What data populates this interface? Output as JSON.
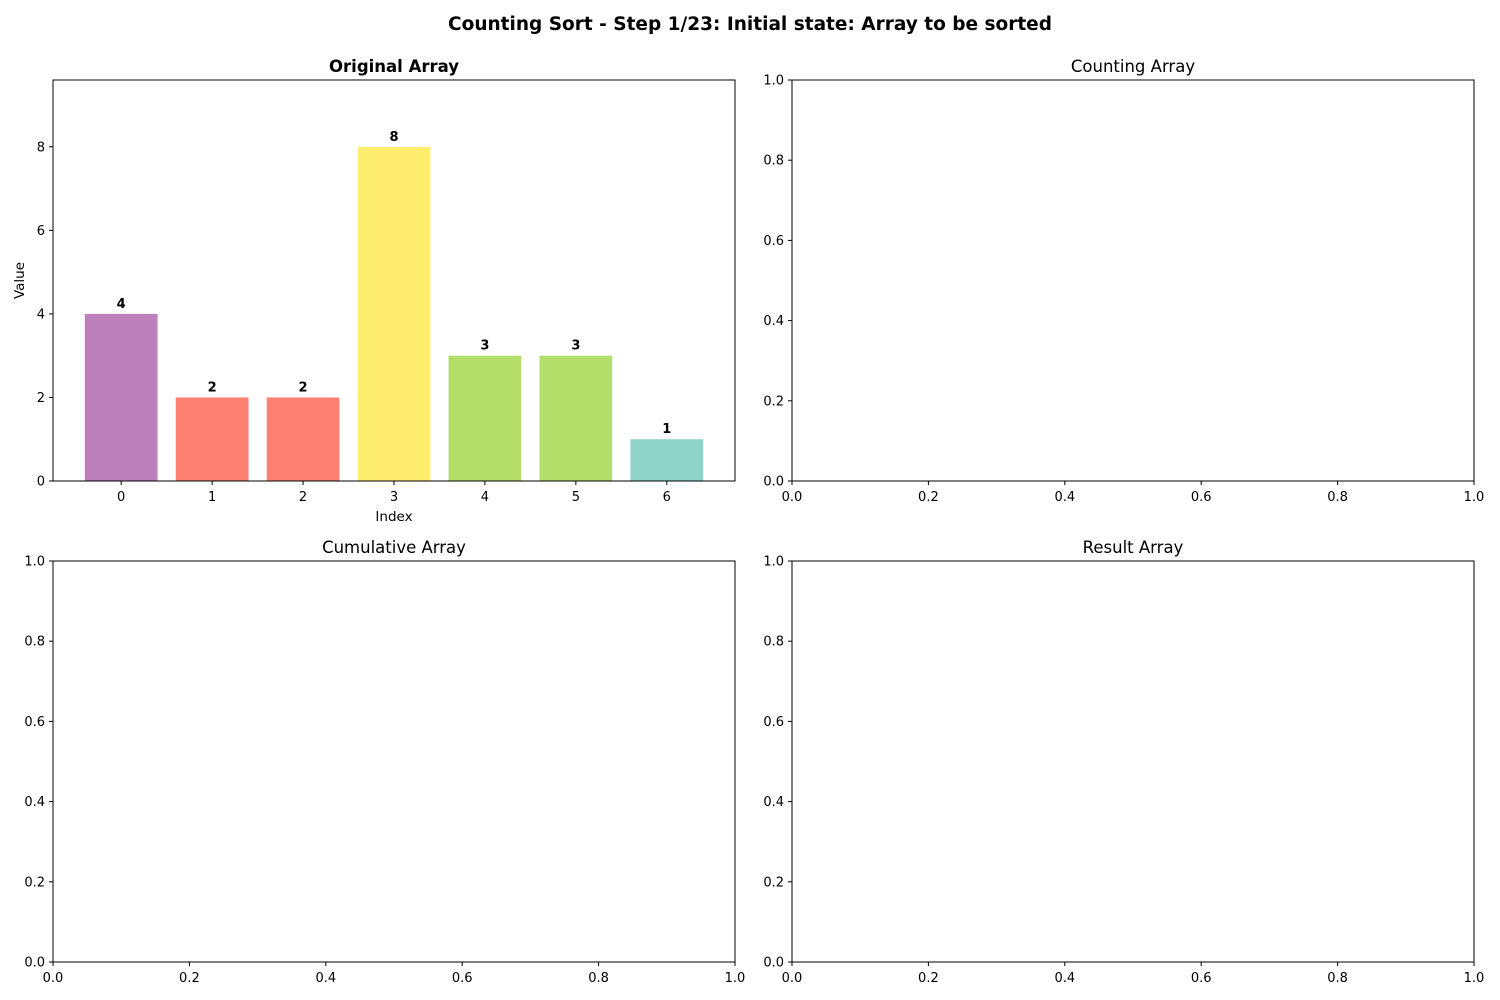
{
  "figure_title": "Counting Sort - Step 1/23: Initial state: Array to be sorted",
  "chart_data": [
    {
      "id": "original",
      "type": "bar",
      "title": "Original Array",
      "title_bold": true,
      "xlabel": "Index",
      "ylabel": "Value",
      "categories": [
        "0",
        "1",
        "2",
        "3",
        "4",
        "5",
        "6"
      ],
      "values": [
        4,
        2,
        2,
        8,
        3,
        3,
        1
      ],
      "colors": [
        "#bc80bd",
        "#fb8072",
        "#fb8072",
        "#ffed6f",
        "#b3de69",
        "#b3de69",
        "#8dd3c7"
      ],
      "data_labels": [
        "4",
        "2",
        "2",
        "8",
        "3",
        "3",
        "1"
      ],
      "xlim": [
        -0.75,
        6.75
      ],
      "ylim": [
        0,
        9.6
      ],
      "xticks": [
        0,
        1,
        2,
        3,
        4,
        5,
        6
      ],
      "yticks": [
        0,
        2,
        4,
        6,
        8
      ],
      "xtick_labels": [
        "0",
        "1",
        "2",
        "3",
        "4",
        "5",
        "6"
      ],
      "ytick_labels": [
        "0",
        "2",
        "4",
        "6",
        "8"
      ]
    },
    {
      "id": "counting",
      "type": "bar",
      "title": "Counting Array",
      "title_bold": false,
      "xlabel": "",
      "ylabel": "",
      "categories": [],
      "values": [],
      "xlim": [
        0,
        1
      ],
      "ylim": [
        0,
        1
      ],
      "xticks": [
        0,
        0.2,
        0.4,
        0.6,
        0.8,
        1
      ],
      "yticks": [
        0,
        0.2,
        0.4,
        0.6,
        0.8,
        1
      ],
      "xtick_labels": [
        "0.0",
        "0.2",
        "0.4",
        "0.6",
        "0.8",
        "1.0"
      ],
      "ytick_labels": [
        "0.0",
        "0.2",
        "0.4",
        "0.6",
        "0.8",
        "1.0"
      ]
    },
    {
      "id": "cumulative",
      "type": "bar",
      "title": "Cumulative Array",
      "title_bold": false,
      "xlabel": "",
      "ylabel": "",
      "categories": [],
      "values": [],
      "xlim": [
        0,
        1
      ],
      "ylim": [
        0,
        1
      ],
      "xticks": [
        0,
        0.2,
        0.4,
        0.6,
        0.8,
        1
      ],
      "yticks": [
        0,
        0.2,
        0.4,
        0.6,
        0.8,
        1
      ],
      "xtick_labels": [
        "0.0",
        "0.2",
        "0.4",
        "0.6",
        "0.8",
        "1.0"
      ],
      "ytick_labels": [
        "0.0",
        "0.2",
        "0.4",
        "0.6",
        "0.8",
        "1.0"
      ]
    },
    {
      "id": "result",
      "type": "bar",
      "title": "Result Array",
      "title_bold": false,
      "xlabel": "",
      "ylabel": "",
      "categories": [],
      "values": [],
      "xlim": [
        0,
        1
      ],
      "ylim": [
        0,
        1
      ],
      "xticks": [
        0,
        0.2,
        0.4,
        0.6,
        0.8,
        1
      ],
      "yticks": [
        0,
        0.2,
        0.4,
        0.6,
        0.8,
        1
      ],
      "xtick_labels": [
        "0.0",
        "0.2",
        "0.4",
        "0.6",
        "0.8",
        "1.0"
      ],
      "ytick_labels": [
        "0.0",
        "0.2",
        "0.4",
        "0.6",
        "0.8",
        "1.0"
      ]
    }
  ]
}
